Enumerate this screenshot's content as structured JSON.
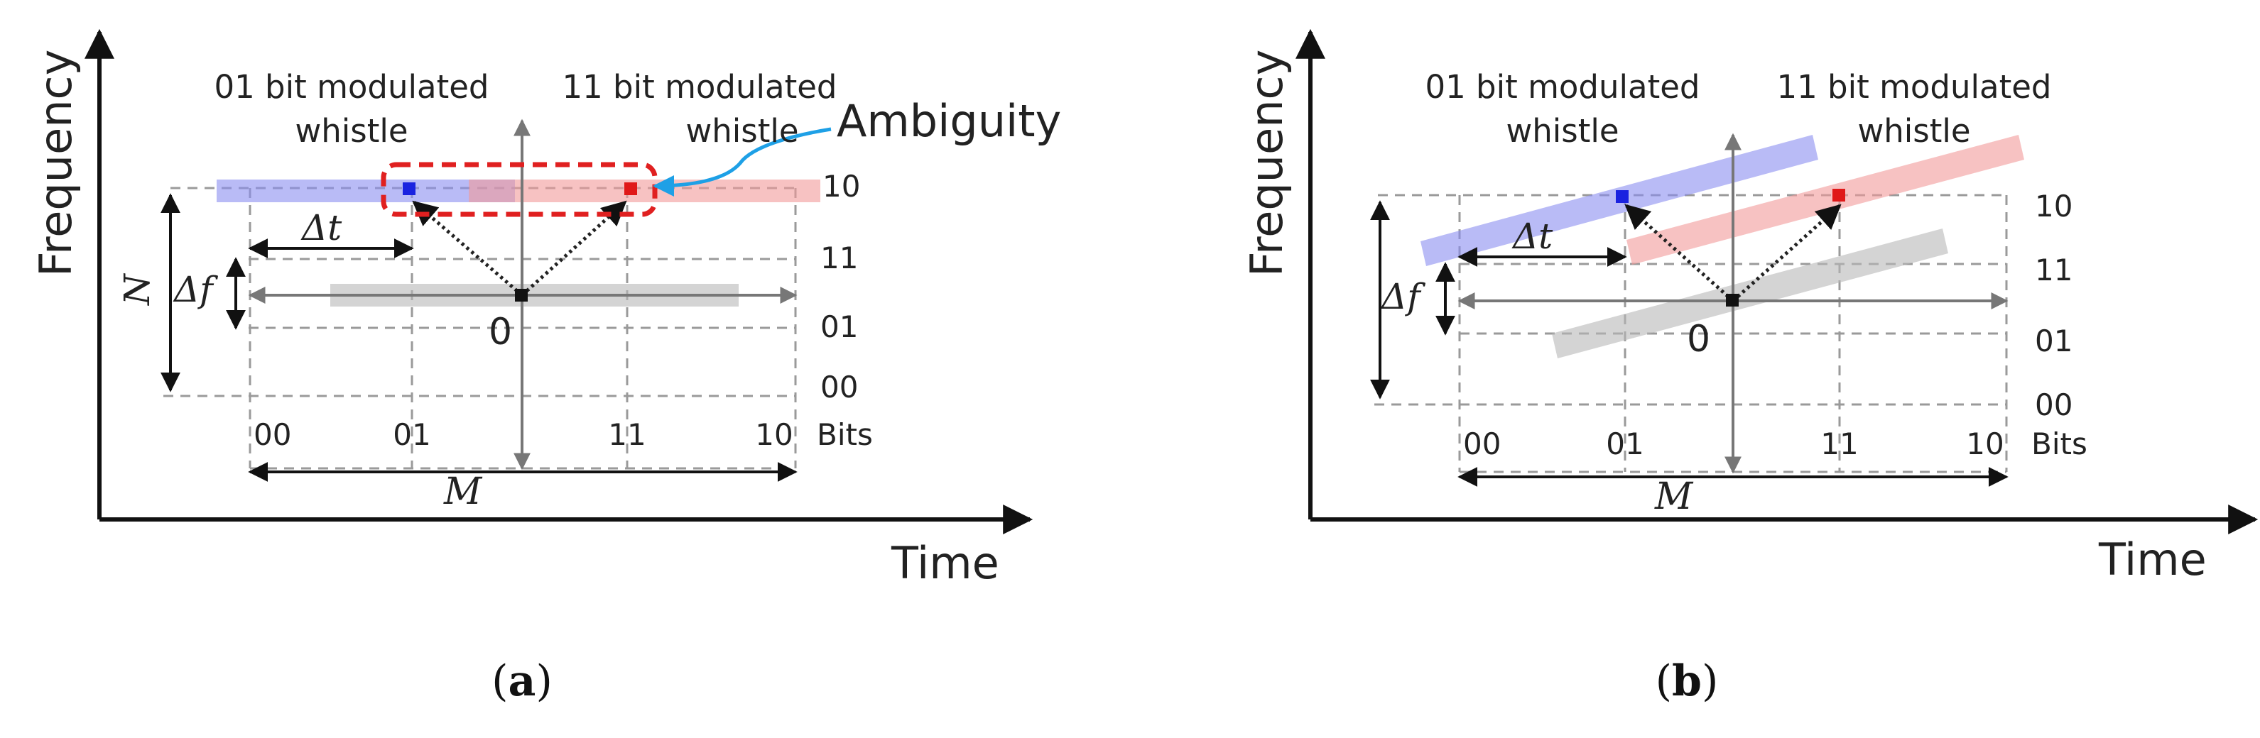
{
  "panel_a": {
    "y_axis": "Frequency",
    "x_axis": "Time",
    "left_whistle_line1": "01 bit modulated",
    "left_whistle_line2": "whistle",
    "right_whistle_line1": "11 bit modulated",
    "right_whistle_line2": "whistle",
    "ambiguity": "Ambiguity",
    "rows": [
      "10",
      "11",
      "01",
      "00"
    ],
    "cols": [
      "00",
      "01",
      "11",
      "10"
    ],
    "bits": "Bits",
    "origin": "0",
    "delta_t": "Δt",
    "delta_f": "Δf",
    "n_label": "N",
    "m_label": "M",
    "caption_open": "(",
    "caption_letter": "a",
    "caption_close": ")"
  },
  "panel_b": {
    "y_axis": "Frequency",
    "x_axis": "Time",
    "left_whistle_line1": "01 bit modulated",
    "left_whistle_line2": "whistle",
    "right_whistle_line1": "11 bit modulated",
    "right_whistle_line2": "whistle",
    "rows": [
      "10",
      "11",
      "01",
      "00"
    ],
    "cols": [
      "00",
      "01",
      "11",
      "10"
    ],
    "bits": "Bits",
    "origin": "0",
    "delta_t": "Δt",
    "delta_f": "Δf",
    "m_label": "M",
    "caption_open": "(",
    "caption_letter": "b",
    "caption_close": ")"
  },
  "colors": {
    "blue_band": "#8a8ef0",
    "red_band": "#f29a9a",
    "gray_band": "#b8b8b8",
    "blue_marker": "#1a22e0",
    "red_marker": "#e01818",
    "ambiguity_box": "#e02020",
    "ambiguity_arrow": "#1ea0e6",
    "axis": "#111111",
    "grid": "#9a9a9a"
  }
}
